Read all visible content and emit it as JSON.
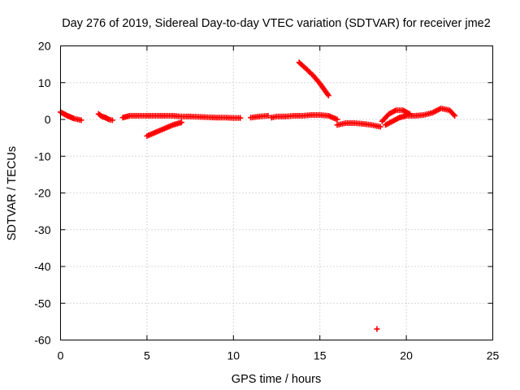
{
  "chart_data": {
    "type": "scatter",
    "title": "Day 276 of 2019, Sidereal Day-to-day VTEC variation (SDTVAR) for receiver jme2",
    "xlabel": "GPS time / hours",
    "ylabel": "SDTVAR / TECUs",
    "xlim": [
      0,
      25
    ],
    "ylim": [
      -60,
      20
    ],
    "xticks": [
      0,
      5,
      10,
      15,
      20,
      25
    ],
    "yticks": [
      20,
      10,
      0,
      -10,
      -20,
      -30,
      -40,
      -50,
      -60
    ],
    "grid": true,
    "marker": "plus",
    "color": "#ff0000",
    "series": [
      {
        "name": "SDTVAR",
        "segments": [
          {
            "x": [
              0.0,
              0.2,
              0.4,
              0.6,
              0.8,
              1.0,
              1.2
            ],
            "y": [
              2.0,
              1.5,
              1.0,
              0.6,
              0.2,
              0.0,
              -0.2
            ]
          },
          {
            "x": [
              2.2,
              2.4,
              2.6,
              2.8,
              3.0
            ],
            "y": [
              1.5,
              0.8,
              0.5,
              0.0,
              -0.2
            ]
          },
          {
            "x": [
              3.6,
              4.0,
              4.5,
              5.0,
              5.5,
              6.0,
              6.5,
              7.0,
              7.5,
              8.0,
              8.5,
              9.0,
              9.5,
              10.0,
              10.4
            ],
            "y": [
              0.5,
              1.0,
              1.0,
              1.0,
              1.0,
              1.0,
              1.0,
              0.8,
              0.8,
              0.7,
              0.6,
              0.5,
              0.5,
              0.4,
              0.4
            ]
          },
          {
            "x": [
              5.0,
              5.5,
              6.0,
              6.5,
              7.0
            ],
            "y": [
              -4.5,
              -3.5,
              -2.5,
              -1.5,
              -0.8
            ]
          },
          {
            "x": [
              11.0,
              11.5,
              12.0
            ],
            "y": [
              0.5,
              0.8,
              1.0
            ]
          },
          {
            "x": [
              12.2,
              12.5,
              13.0,
              13.5,
              14.0,
              14.5,
              15.0,
              15.5,
              16.0
            ],
            "y": [
              0.5,
              0.8,
              0.8,
              1.0,
              1.0,
              1.2,
              1.2,
              1.0,
              0.0
            ]
          },
          {
            "x": [
              13.8,
              14.2,
              14.6,
              15.0,
              15.3,
              15.5
            ],
            "y": [
              15.5,
              13.8,
              12.0,
              9.8,
              7.8,
              6.5
            ]
          },
          {
            "x": [
              16.0,
              16.5,
              17.0,
              17.5,
              18.0,
              18.5
            ],
            "y": [
              -1.5,
              -1.0,
              -1.0,
              -1.2,
              -1.5,
              -2.0
            ]
          },
          {
            "x": [
              18.6,
              18.8,
              19.0,
              19.4,
              19.8,
              20.2
            ],
            "y": [
              -0.5,
              0.5,
              1.5,
              2.5,
              2.5,
              1.5
            ]
          },
          {
            "x": [
              18.8,
              19.2,
              19.6,
              20.0,
              20.5,
              21.0,
              21.5,
              22.0,
              22.5,
              22.8
            ],
            "y": [
              -1.5,
              -0.5,
              0.5,
              1.0,
              1.0,
              1.2,
              1.8,
              3.0,
              2.5,
              1.0
            ]
          },
          {
            "x": [
              18.3
            ],
            "y": [
              -57.0
            ]
          }
        ]
      }
    ]
  }
}
